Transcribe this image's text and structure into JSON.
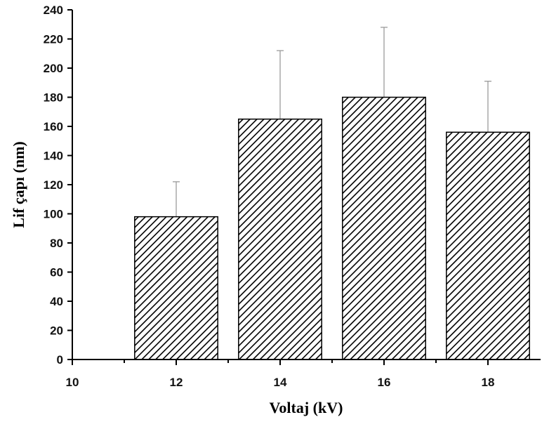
{
  "chart_data": {
    "type": "bar",
    "xlabel": "Voltaj (kV)",
    "ylabel": "Lif çapı (nm)",
    "xlim": [
      10,
      19
    ],
    "ylim": [
      0,
      240
    ],
    "x_ticks": [
      10,
      12,
      14,
      16,
      18
    ],
    "y_ticks": [
      0,
      20,
      40,
      60,
      80,
      100,
      120,
      140,
      160,
      180,
      200,
      220,
      240
    ],
    "bar_width": 1.6,
    "fill": "diagonal hatch",
    "grid": false,
    "series": [
      {
        "x": [
          12,
          14,
          16,
          18
        ],
        "values": [
          98,
          165,
          180,
          156
        ],
        "error_upper": [
          24,
          47,
          48,
          35
        ]
      }
    ],
    "colors": {
      "hatch": "#000000",
      "error_bar": "#9a9a9a",
      "axis": "#000000"
    }
  }
}
